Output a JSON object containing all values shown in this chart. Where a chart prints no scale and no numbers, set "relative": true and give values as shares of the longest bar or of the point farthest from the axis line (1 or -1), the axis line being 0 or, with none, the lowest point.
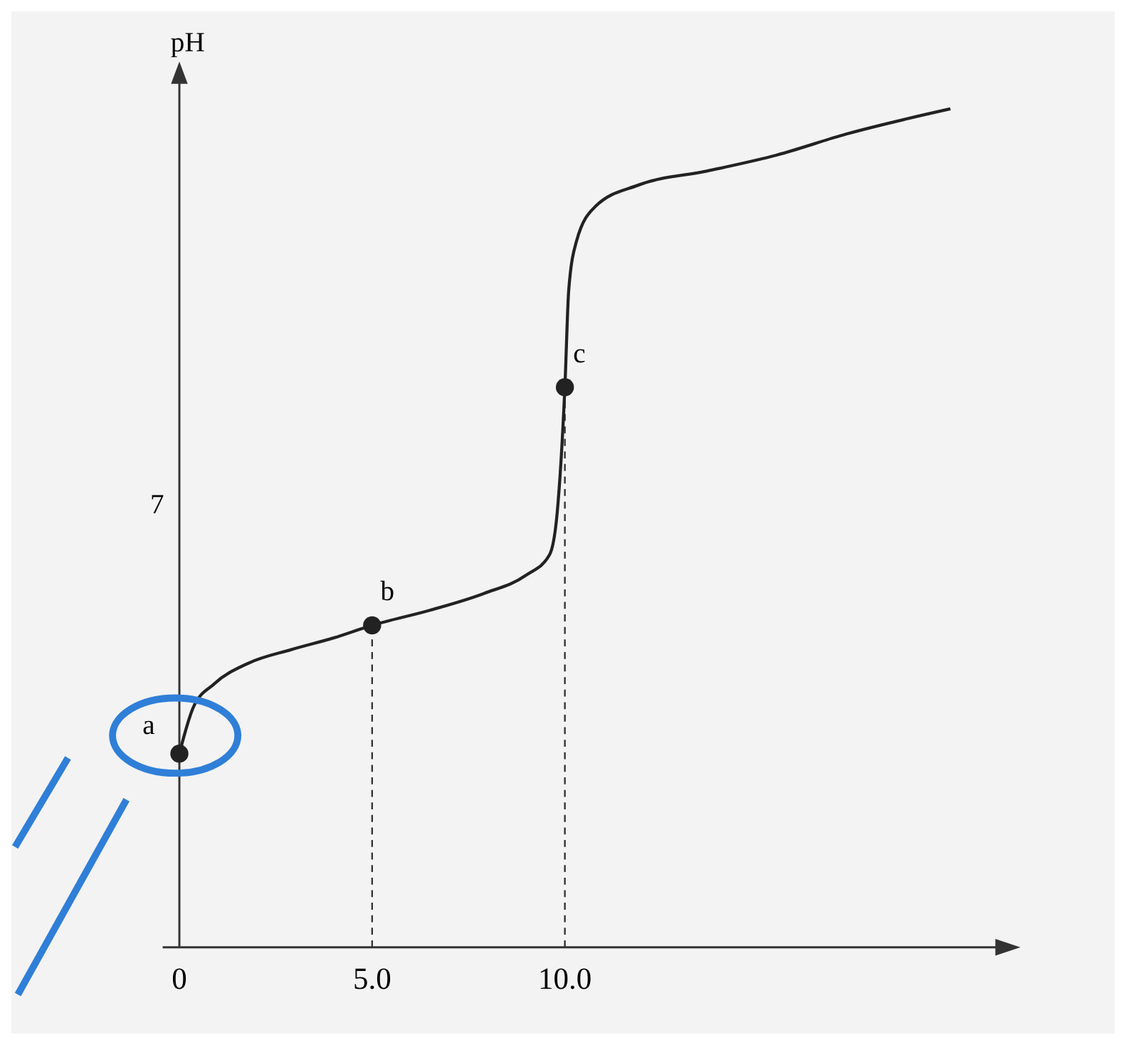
{
  "chart_data": {
    "type": "line",
    "relative": true,
    "ylabel": "pH",
    "xlim": [
      0,
      21.6
    ],
    "xticks": [
      0,
      {
        "value": 5,
        "label": "5.0"
      },
      {
        "value": 10,
        "label": "10.0"
      }
    ],
    "grid": false,
    "tick_labels": "x",
    "series": [
      {
        "color": "#222222",
        "marker": "none",
        "x": [
          0,
          0.36,
          0.9,
          1.8,
          2.9,
          4.0,
          5.0,
          6.5,
          7.9,
          9.0,
          9.6,
          9.8,
          10,
          10.1,
          10.3,
          10.8,
          11.9,
          13.7,
          15.5,
          17.3,
          20
        ],
        "values": [
          0.231,
          0.286,
          0.314,
          0.339,
          0.355,
          0.369,
          0.384,
          0.402,
          0.422,
          0.444,
          0.468,
          0.518,
          0.668,
          0.784,
          0.842,
          0.884,
          0.909,
          0.926,
          0.945,
          0.97,
          1.0
        ]
      },
      {
        "type": "scatter",
        "color": "#222222",
        "marker": "circle",
        "x": [
          0,
          5,
          10
        ],
        "values": [
          0.231,
          0.384,
          0.668
        ]
      }
    ],
    "ref_lines": [
      {
        "axis": "x",
        "value": 5,
        "line_style": "dashed"
      },
      {
        "axis": "x",
        "value": 10,
        "line_style": "dashed"
      }
    ],
    "annotations": [
      {
        "text": "a",
        "x": 0,
        "y": 0.231
      },
      {
        "text": "b",
        "x": 5,
        "y": 0.384
      },
      {
        "text": "c",
        "x": 10,
        "y": 0.668
      },
      "7"
    ]
  }
}
